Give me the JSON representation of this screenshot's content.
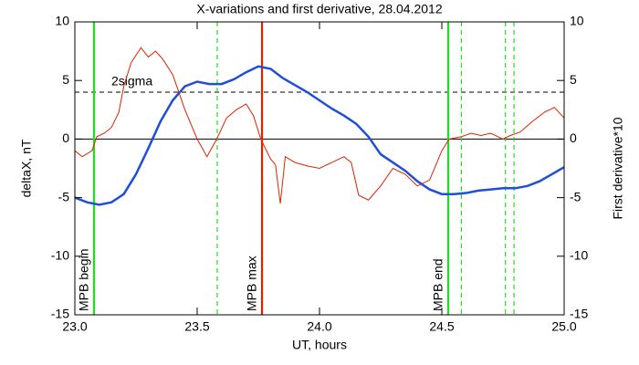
{
  "chart_data": {
    "type": "line",
    "title": "X-variations and first derivative, 28.04.2012",
    "xlabel": "UT, hours",
    "ylabel": "deltaX, nT",
    "y2label": "First derivative*10",
    "ylabel_color": "#1f4fd8",
    "y2label_color": "#dd2200",
    "xlim": [
      23,
      25
    ],
    "xticks": [
      {
        "value": 23,
        "label": "23.0"
      },
      {
        "value": 23.5,
        "label": "23.5"
      },
      {
        "value": 24,
        "label": "24.0"
      },
      {
        "value": 24.5,
        "label": "24.5"
      },
      {
        "value": 25,
        "label": "25.0"
      }
    ],
    "ylim": [
      -15,
      10
    ],
    "yticks": [
      -15,
      -10,
      -5,
      0,
      5,
      10
    ],
    "y2lim": [
      -15,
      10
    ],
    "y2ticks": [
      -15,
      -10,
      -5,
      0,
      5,
      10
    ],
    "series": [
      {
        "color": "#1f4fd8",
        "axis": "y",
        "width": 2.5,
        "x": [
          23.0,
          23.05,
          23.1,
          23.15,
          23.2,
          23.25,
          23.3,
          23.35,
          23.4,
          23.45,
          23.5,
          23.55,
          23.6,
          23.65,
          23.7,
          23.75,
          23.8,
          23.85,
          23.9,
          23.95,
          24.0,
          24.05,
          24.1,
          24.15,
          24.2,
          24.25,
          24.3,
          24.35,
          24.4,
          24.45,
          24.5,
          24.55,
          24.6,
          24.65,
          24.7,
          24.75,
          24.8,
          24.85,
          24.9,
          24.95,
          25.0
        ],
        "values": [
          -5.0,
          -5.4,
          -5.6,
          -5.4,
          -4.7,
          -3.0,
          -0.8,
          1.5,
          3.3,
          4.5,
          4.9,
          4.7,
          4.7,
          5.1,
          5.7,
          6.2,
          6.0,
          5.2,
          4.6,
          4.0,
          3.3,
          2.6,
          2.0,
          1.3,
          0.2,
          -1.3,
          -2.0,
          -2.7,
          -3.6,
          -4.3,
          -4.7,
          -4.7,
          -4.6,
          -4.4,
          -4.3,
          -4.2,
          -4.2,
          -4.0,
          -3.6,
          -3.0,
          -2.4
        ]
      },
      {
        "color": "#dd2200",
        "axis": "y2",
        "width": 1,
        "x": [
          23.0,
          23.03,
          23.07,
          23.09,
          23.12,
          23.15,
          23.18,
          23.2,
          23.23,
          23.27,
          23.3,
          23.33,
          23.36,
          23.4,
          23.45,
          23.5,
          23.54,
          23.58,
          23.62,
          23.66,
          23.7,
          23.73,
          23.76,
          23.8,
          23.82,
          23.84,
          23.86,
          23.9,
          23.95,
          24.0,
          24.05,
          24.1,
          24.13,
          24.16,
          24.2,
          24.25,
          24.3,
          24.35,
          24.4,
          24.45,
          24.5,
          24.53,
          24.58,
          24.62,
          24.66,
          24.7,
          24.75,
          24.78,
          24.82,
          24.87,
          24.92,
          24.96,
          25.0
        ],
        "values": [
          -1.0,
          -1.5,
          -1.0,
          0.2,
          0.5,
          1.0,
          2.3,
          4.5,
          6.5,
          7.8,
          7.0,
          7.5,
          6.8,
          5.5,
          2.5,
          0.0,
          -1.5,
          0.0,
          1.8,
          2.5,
          3.0,
          2.0,
          0.0,
          -1.7,
          -2.2,
          -5.5,
          -1.5,
          -2.0,
          -2.3,
          -2.5,
          -2.0,
          -1.5,
          -2.0,
          -4.8,
          -5.2,
          -4.0,
          -2.5,
          -3.0,
          -4.0,
          -3.5,
          -1.0,
          0.0,
          0.2,
          0.5,
          0.3,
          0.5,
          0.0,
          0.3,
          0.6,
          1.5,
          2.3,
          2.7,
          1.8
        ]
      }
    ],
    "vlines": [
      {
        "x": 23.078,
        "color": "#22dd22",
        "style": "solid",
        "label": "MPB begin"
      },
      {
        "x": 23.582,
        "color": "#22dd22",
        "style": "dashed"
      },
      {
        "x": 23.765,
        "color": "#dd2200",
        "style": "solid",
        "label": "MPB max"
      },
      {
        "x": 24.526,
        "color": "#22dd22",
        "style": "solid",
        "label": "MPB end"
      },
      {
        "x": 24.58,
        "color": "#22dd22",
        "style": "dashed"
      },
      {
        "x": 24.76,
        "color": "#22dd22",
        "style": "dashed"
      },
      {
        "x": 24.795,
        "color": "#22dd22",
        "style": "dashed"
      }
    ],
    "hlines": [
      {
        "y": 4,
        "color": "#000000",
        "style": "dashed",
        "label": "2sigma"
      },
      {
        "y": 0,
        "color": "#000000",
        "style": "solid"
      }
    ]
  }
}
